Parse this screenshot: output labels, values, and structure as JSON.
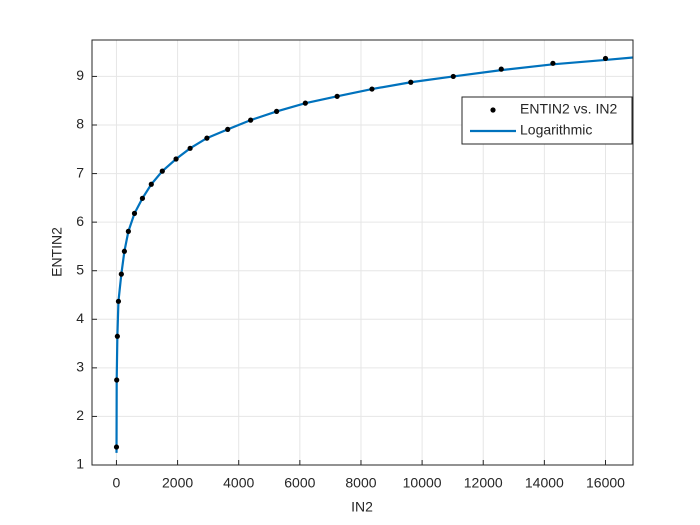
{
  "chart_data": {
    "type": "scatter",
    "xlabel": "IN2",
    "ylabel": "ENTIN2",
    "xlim": [
      -800,
      16900
    ],
    "ylim": [
      1,
      9.75
    ],
    "xticks": [
      0,
      2000,
      4000,
      6000,
      8000,
      10000,
      12000,
      14000,
      16000
    ],
    "yticks": [
      1,
      2,
      3,
      4,
      5,
      6,
      7,
      8,
      9
    ],
    "grid": true,
    "legend": "northeast",
    "series": [
      {
        "name": "ENTIN2 vs. IN2",
        "style": "markers",
        "color": "#000000",
        "x": [
          1,
          8,
          30,
          65,
          160,
          260,
          390,
          590,
          850,
          1140,
          1500,
          1950,
          2410,
          2960,
          3640,
          4390,
          5240,
          6180,
          7220,
          8360,
          9630,
          11020,
          12590,
          14280,
          16000
        ],
        "values": [
          1.37,
          2.75,
          3.65,
          4.37,
          4.93,
          5.4,
          5.81,
          6.18,
          6.49,
          6.78,
          7.05,
          7.3,
          7.52,
          7.73,
          7.91,
          8.1,
          8.28,
          8.45,
          8.59,
          8.74,
          8.88,
          9.0,
          9.15,
          9.27,
          9.37
        ]
      },
      {
        "name": "Logarithmic",
        "style": "line",
        "color": "#0072bd",
        "x": [
          2,
          8,
          30,
          65,
          160,
          260,
          390,
          590,
          850,
          1140,
          1500,
          1950,
          2410,
          2960,
          3640,
          4390,
          5240,
          6180,
          7220,
          8360,
          9630,
          11020,
          12590,
          14280,
          16000,
          16900
        ],
        "values": [
          1.25,
          2.75,
          3.65,
          4.37,
          4.93,
          5.4,
          5.81,
          6.18,
          6.49,
          6.78,
          7.05,
          7.3,
          7.52,
          7.73,
          7.91,
          8.1,
          8.28,
          8.45,
          8.59,
          8.74,
          8.88,
          9.0,
          9.13,
          9.25,
          9.34,
          9.39
        ]
      }
    ]
  }
}
